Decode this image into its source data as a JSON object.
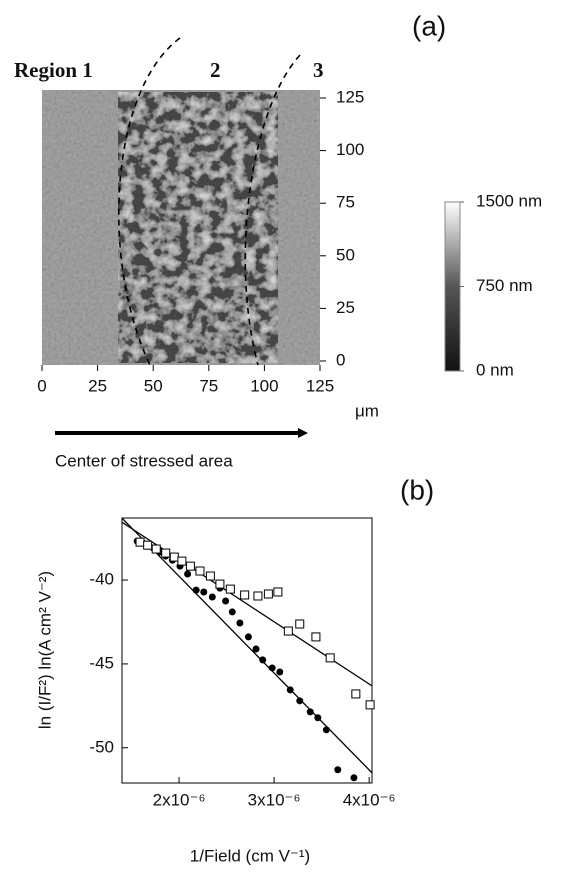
{
  "chart_data": [
    {
      "type": "image",
      "panel_label": "(a)",
      "region_labels": [
        "Region  1",
        "2",
        "3"
      ],
      "x_unit": "μm",
      "arrow_label": "Center of stressed area",
      "xlim": [
        0,
        125
      ],
      "xticks": [
        0,
        25,
        50,
        75,
        100,
        125
      ],
      "ylim": [
        -1.9,
        128.8
      ],
      "yticks": [
        0,
        25,
        50,
        75,
        100,
        125
      ],
      "colorbar": {
        "lim": [
          0,
          1500
        ],
        "ticks": [
          {
            "value": 1500,
            "label": "1500 nm"
          },
          {
            "value": 750,
            "label": "750 nm"
          },
          {
            "value": 0,
            "label": "0 nm"
          }
        ]
      }
    },
    {
      "type": "scatter",
      "panel_label": "(b)",
      "y_label": "ln (I/F²)  ln(A cm² V⁻²)",
      "x_label": "1/Field (cm V⁻¹)",
      "xlim": [
        1.4e-06,
        4.03e-06
      ],
      "xticks": [
        {
          "value": 2e-06,
          "label": "2x10⁻⁶"
        },
        {
          "value": 3e-06,
          "label": "3x10⁻⁶"
        },
        {
          "value": 4e-06,
          "label": "4x10⁻⁶"
        }
      ],
      "ylim": [
        -52.1,
        -36.3
      ],
      "yticks": [
        -40,
        -45,
        -50
      ],
      "series": [
        {
          "marker": "filled-circle",
          "color": "#000000",
          "x": [
            1.56e-06,
            1.62e-06,
            1.67e-06,
            1.73e-06,
            1.8e-06,
            1.86e-06,
            1.93e-06,
            2.01e-06,
            2.09e-06,
            2.18e-06,
            2.26e-06,
            2.35e-06,
            2.43e-06,
            2.49e-06,
            2.56e-06,
            2.64e-06,
            2.73e-06,
            2.81e-06,
            2.88e-06,
            2.98e-06,
            3.06e-06,
            3.17e-06,
            3.27e-06,
            3.38e-06,
            3.46e-06,
            3.55e-06,
            3.67e-06,
            3.84e-06
          ],
          "values": [
            -37.68,
            -37.8,
            -37.98,
            -38.1,
            -38.33,
            -38.57,
            -38.81,
            -39.17,
            -39.64,
            -40.6,
            -40.71,
            -41.01,
            -40.48,
            -41.25,
            -41.9,
            -42.56,
            -43.39,
            -44.11,
            -44.76,
            -45.24,
            -45.48,
            -46.55,
            -47.2,
            -47.86,
            -48.21,
            -48.93,
            -51.31,
            -51.79
          ]
        },
        {
          "marker": "open-square",
          "color": "#000000",
          "x": [
            1.59e-06,
            1.67e-06,
            1.76e-06,
            1.86e-06,
            1.95e-06,
            2.03e-06,
            2.12e-06,
            2.22e-06,
            2.33e-06,
            2.43e-06,
            2.54e-06,
            2.69e-06,
            2.83e-06,
            2.94e-06,
            3.04e-06,
            3.15e-06,
            3.27e-06,
            3.44e-06,
            3.59e-06,
            3.86e-06,
            4.01e-06
          ],
          "values": [
            -37.74,
            -37.92,
            -38.15,
            -38.39,
            -38.63,
            -38.87,
            -39.17,
            -39.46,
            -39.76,
            -40.24,
            -40.54,
            -40.89,
            -40.95,
            -40.83,
            -40.71,
            -43.04,
            -42.62,
            -43.39,
            -44.64,
            -46.79,
            -47.44
          ]
        }
      ],
      "fits": [
        {
          "x": [
            1.4e-06,
            4.03e-06
          ],
          "values": [
            -36.31,
            -51.49
          ]
        },
        {
          "x": [
            1.4e-06,
            4.03e-06
          ],
          "values": [
            -36.55,
            -46.31
          ]
        }
      ]
    }
  ]
}
